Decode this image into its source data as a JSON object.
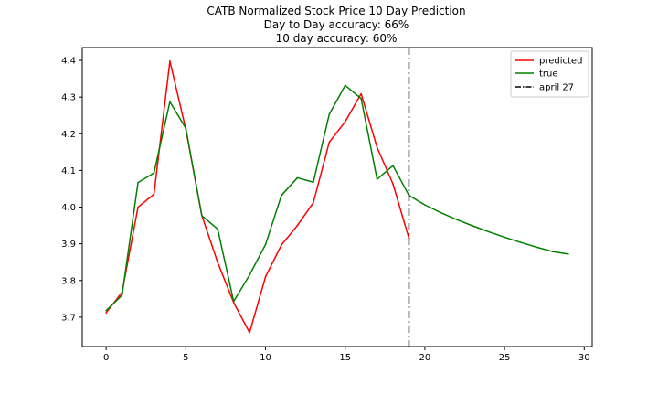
{
  "chart_data": {
    "type": "line",
    "title_lines": [
      "CATB Normalized Stock Price 10 Day Prediction",
      "Day to Day accuracy: 66%",
      "10 day accuracy: 60%"
    ],
    "xlabel": "",
    "ylabel": "",
    "xlim": [
      -1.5,
      30.5
    ],
    "ylim": [
      3.62,
      4.435
    ],
    "x_ticks": [
      0,
      5,
      10,
      15,
      20,
      25,
      30
    ],
    "y_ticks": [
      3.7,
      3.8,
      3.9,
      4.0,
      4.1,
      4.2,
      4.3,
      4.4
    ],
    "y_tick_labels": [
      "3.7",
      "3.8",
      "3.9",
      "4.0",
      "4.1",
      "4.2",
      "4.3",
      "4.4"
    ],
    "grid": false,
    "legend_position": "top-right",
    "series": [
      {
        "name": "predicted",
        "color": "#ff0000",
        "x": [
          0,
          1,
          2,
          3,
          4,
          5,
          6,
          7,
          8,
          9,
          10,
          11,
          12,
          13,
          14,
          15,
          16,
          17,
          18,
          19
        ],
        "y": [
          3.712,
          3.768,
          4.0,
          4.035,
          4.398,
          4.212,
          3.978,
          3.849,
          3.74,
          3.658,
          3.81,
          3.897,
          3.95,
          4.012,
          4.177,
          4.233,
          4.309,
          4.163,
          4.063,
          3.915
        ]
      },
      {
        "name": "true",
        "color": "#008000",
        "x": [
          0,
          1,
          2,
          3,
          4,
          5,
          6,
          7,
          8,
          9,
          10,
          11,
          12,
          13,
          14,
          15,
          16,
          17,
          18,
          19,
          20,
          21,
          22,
          23,
          24,
          25,
          26,
          27,
          28,
          29
        ],
        "y": [
          3.718,
          3.76,
          4.067,
          4.093,
          4.287,
          4.215,
          3.977,
          3.94,
          3.743,
          3.815,
          3.898,
          4.032,
          4.08,
          4.068,
          4.253,
          4.332,
          4.296,
          4.076,
          4.113,
          4.032,
          4.006,
          3.985,
          3.966,
          3.949,
          3.933,
          3.918,
          3.904,
          3.891,
          3.879,
          3.872
        ]
      }
    ],
    "vline": {
      "name": "april 27",
      "x": 19,
      "color": "#000000",
      "style": "dash-dot"
    }
  }
}
